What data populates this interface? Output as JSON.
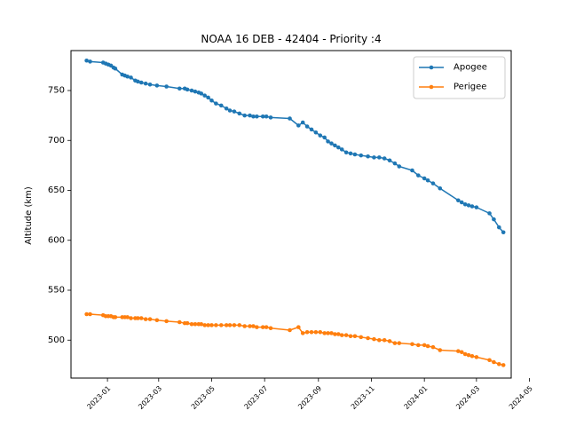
{
  "chart_data": {
    "type": "line",
    "title": "NOAA 16 DEB - 42404 - Priority :4",
    "xlabel": "",
    "ylabel": "Altitude (km)",
    "ylim": [
      462,
      790
    ],
    "xlim": [
      "2022-11-20",
      "2024-04-10"
    ],
    "grid": false,
    "legend_position": "top-right",
    "x_tick_labels": [
      "2023-01",
      "2023-03",
      "2023-05",
      "2023-07",
      "2023-09",
      "2023-11",
      "2024-01",
      "2024-03",
      "2024-05"
    ],
    "x_tick_dates": [
      "2023-01-01",
      "2023-03-01",
      "2023-05-01",
      "2023-07-01",
      "2023-09-01",
      "2023-11-01",
      "2024-01-01",
      "2024-03-01",
      "2024-05-01"
    ],
    "y_ticks": [
      500,
      550,
      600,
      650,
      700,
      750
    ],
    "series": [
      {
        "name": "Apogee",
        "color": "#1f77b4",
        "x": [
          "2022-12-08",
          "2022-12-12",
          "2022-12-27",
          "2022-12-30",
          "2023-01-02",
          "2023-01-05",
          "2023-01-08",
          "2023-01-10",
          "2023-01-18",
          "2023-01-21",
          "2023-01-24",
          "2023-01-28",
          "2023-02-02",
          "2023-02-05",
          "2023-02-09",
          "2023-02-14",
          "2023-02-19",
          "2023-02-27",
          "2023-03-10",
          "2023-03-25",
          "2023-03-31",
          "2023-04-03",
          "2023-04-08",
          "2023-04-12",
          "2023-04-16",
          "2023-04-19",
          "2023-04-23",
          "2023-04-27",
          "2023-05-01",
          "2023-05-06",
          "2023-05-12",
          "2023-05-18",
          "2023-05-22",
          "2023-05-27",
          "2023-06-02",
          "2023-06-08",
          "2023-06-14",
          "2023-06-18",
          "2023-06-22",
          "2023-06-29",
          "2023-07-03",
          "2023-07-08",
          "2023-07-30",
          "2023-08-09",
          "2023-08-14",
          "2023-08-19",
          "2023-08-24",
          "2023-08-29",
          "2023-09-03",
          "2023-09-08",
          "2023-09-12",
          "2023-09-16",
          "2023-09-20",
          "2023-09-24",
          "2023-09-28",
          "2023-10-03",
          "2023-10-08",
          "2023-10-13",
          "2023-10-20",
          "2023-10-28",
          "2023-11-04",
          "2023-11-10",
          "2023-11-16",
          "2023-11-22",
          "2023-11-28",
          "2023-12-03",
          "2023-12-18",
          "2023-12-25",
          "2024-01-01",
          "2024-01-05",
          "2024-01-11",
          "2024-01-19",
          "2024-02-09",
          "2024-02-13",
          "2024-02-17",
          "2024-02-21",
          "2024-02-25",
          "2024-03-01",
          "2024-03-16",
          "2024-03-21",
          "2024-03-27",
          "2024-04-01"
        ],
        "values": [
          780,
          779,
          778,
          777,
          776,
          775,
          773,
          772,
          766,
          765,
          764,
          763,
          760,
          759,
          758,
          757,
          756,
          755,
          754,
          752,
          752,
          751,
          750,
          749,
          748,
          747,
          745,
          743,
          740,
          737,
          735,
          732,
          730,
          729,
          727,
          725,
          725,
          724,
          724,
          724,
          724,
          723,
          722,
          715,
          718,
          714,
          711,
          708,
          705,
          703,
          699,
          697,
          695,
          693,
          691,
          688,
          687,
          686,
          685,
          684,
          683,
          683,
          682,
          680,
          677,
          674,
          670,
          665,
          662,
          660,
          657,
          652,
          640,
          638,
          636,
          635,
          634,
          633,
          627,
          621,
          613,
          608
        ]
      },
      {
        "name": "Perigee",
        "color": "#ff7f0e",
        "x": [
          "2022-12-08",
          "2022-12-12",
          "2022-12-27",
          "2022-12-30",
          "2023-01-02",
          "2023-01-05",
          "2023-01-08",
          "2023-01-10",
          "2023-01-18",
          "2023-01-21",
          "2023-01-24",
          "2023-01-28",
          "2023-02-02",
          "2023-02-05",
          "2023-02-09",
          "2023-02-14",
          "2023-02-19",
          "2023-02-27",
          "2023-03-10",
          "2023-03-25",
          "2023-03-31",
          "2023-04-03",
          "2023-04-08",
          "2023-04-12",
          "2023-04-16",
          "2023-04-19",
          "2023-04-23",
          "2023-04-27",
          "2023-05-01",
          "2023-05-06",
          "2023-05-12",
          "2023-05-18",
          "2023-05-22",
          "2023-05-27",
          "2023-06-02",
          "2023-06-08",
          "2023-06-14",
          "2023-06-18",
          "2023-06-22",
          "2023-06-29",
          "2023-07-03",
          "2023-07-08",
          "2023-07-30",
          "2023-08-09",
          "2023-08-14",
          "2023-08-19",
          "2023-08-24",
          "2023-08-29",
          "2023-09-03",
          "2023-09-08",
          "2023-09-12",
          "2023-09-16",
          "2023-09-20",
          "2023-09-24",
          "2023-09-28",
          "2023-10-03",
          "2023-10-08",
          "2023-10-13",
          "2023-10-20",
          "2023-10-28",
          "2023-11-04",
          "2023-11-10",
          "2023-11-16",
          "2023-11-22",
          "2023-11-28",
          "2023-12-03",
          "2023-12-18",
          "2023-12-25",
          "2024-01-01",
          "2024-01-05",
          "2024-01-11",
          "2024-01-19",
          "2024-02-09",
          "2024-02-13",
          "2024-02-17",
          "2024-02-21",
          "2024-02-25",
          "2024-03-01",
          "2024-03-16",
          "2024-03-21",
          "2024-03-27",
          "2024-04-01"
        ],
        "values": [
          526,
          526,
          525,
          524,
          524,
          524,
          523,
          523,
          523,
          523,
          523,
          522,
          522,
          522,
          522,
          521,
          521,
          520,
          519,
          518,
          517,
          517,
          516,
          516,
          516,
          516,
          515,
          515,
          515,
          515,
          515,
          515,
          515,
          515,
          515,
          514,
          514,
          514,
          513,
          513,
          513,
          512,
          510,
          513,
          507,
          508,
          508,
          508,
          508,
          507,
          507,
          507,
          506,
          506,
          505,
          505,
          504,
          504,
          503,
          502,
          501,
          500,
          500,
          499,
          497,
          497,
          496,
          495,
          495,
          494,
          493,
          490,
          489,
          488,
          486,
          485,
          484,
          483,
          480,
          478,
          476,
          475
        ]
      }
    ]
  }
}
